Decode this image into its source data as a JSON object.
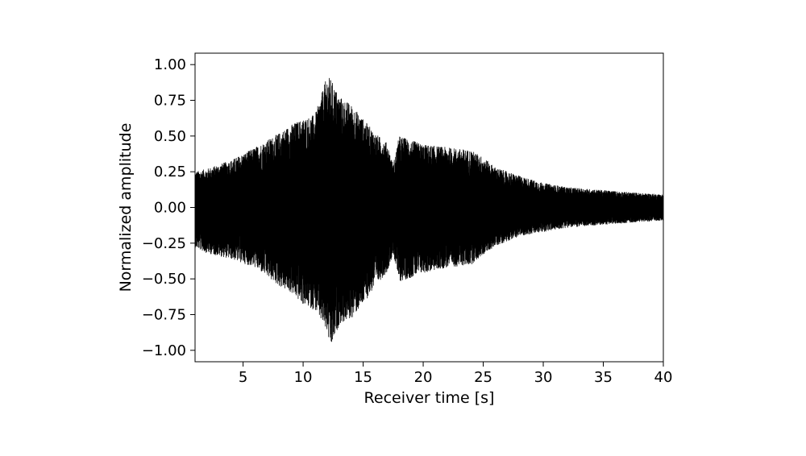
{
  "chart_data": {
    "type": "line",
    "title": "",
    "xlabel": "Receiver time [s]",
    "ylabel": "Normalized amplitude",
    "xlim": [
      1,
      40
    ],
    "ylim": [
      -1.08,
      1.08
    ],
    "xticks": [
      5,
      10,
      15,
      20,
      25,
      30,
      35,
      40
    ],
    "xtick_labels": [
      "5",
      "10",
      "15",
      "20",
      "25",
      "30",
      "35",
      "40"
    ],
    "yticks": [
      1.0,
      0.75,
      0.5,
      0.25,
      0.0,
      -0.25,
      -0.5,
      -0.75,
      -1.0
    ],
    "ytick_labels": [
      "1.00",
      "0.75",
      "0.50",
      "0.25",
      "0.00",
      "−0.25",
      "−0.50",
      "−0.75",
      "−1.00"
    ],
    "grid": false,
    "legend": false,
    "line_color": "#000000",
    "series": [
      {
        "envelope_time": [
          1,
          2,
          4,
          6,
          8,
          9,
          10,
          11,
          12,
          12.3,
          13,
          14,
          15,
          16,
          17,
          17.5,
          18,
          20,
          22,
          24,
          25,
          26,
          28,
          30,
          32,
          35,
          38,
          40
        ],
        "upper_envelope": [
          0.25,
          0.27,
          0.33,
          0.42,
          0.52,
          0.58,
          0.62,
          0.65,
          0.92,
          0.9,
          0.78,
          0.72,
          0.62,
          0.52,
          0.45,
          0.3,
          0.5,
          0.44,
          0.42,
          0.4,
          0.35,
          0.28,
          0.22,
          0.17,
          0.14,
          0.12,
          0.1,
          0.09
        ],
        "lower_envelope": [
          -0.28,
          -0.32,
          -0.36,
          -0.42,
          -0.55,
          -0.6,
          -0.68,
          -0.72,
          -0.88,
          -1.0,
          -0.82,
          -0.78,
          -0.68,
          -0.55,
          -0.45,
          -0.32,
          -0.52,
          -0.46,
          -0.42,
          -0.4,
          -0.33,
          -0.27,
          -0.2,
          -0.17,
          -0.14,
          -0.12,
          -0.1,
          -0.09
        ]
      }
    ]
  }
}
